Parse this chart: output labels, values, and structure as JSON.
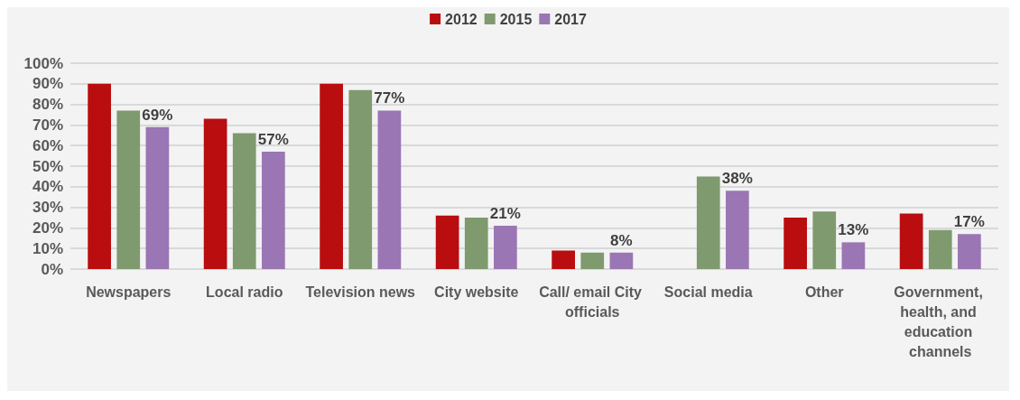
{
  "chart_data": {
    "type": "bar",
    "categories": [
      "Newspapers",
      "Local radio",
      "Television news",
      "City website",
      "Call/ email City officials",
      "Social media",
      "Other",
      "Government, health, and education channels"
    ],
    "series": [
      {
        "name": "2012",
        "color": "#b90d0f",
        "values": [
          90,
          73,
          90,
          26,
          9,
          null,
          25,
          27
        ]
      },
      {
        "name": "2015",
        "color": "#7f9a6e",
        "values": [
          77,
          66,
          87,
          25,
          8,
          45,
          28,
          19
        ]
      },
      {
        "name": "2017",
        "color": "#9a76b4",
        "values": [
          69,
          57,
          77,
          21,
          8,
          38,
          13,
          17
        ],
        "value_labels": [
          "69%",
          "57%",
          "77%",
          "21%",
          "8%",
          "38%",
          "13%",
          "17%"
        ]
      }
    ],
    "ylim": [
      0,
      100
    ],
    "yticks": [
      {
        "value": 0,
        "label": "0%"
      },
      {
        "value": 10,
        "label": "10%"
      },
      {
        "value": 20,
        "label": "20%"
      },
      {
        "value": 30,
        "label": "30%"
      },
      {
        "value": 40,
        "label": "40%"
      },
      {
        "value": 50,
        "label": "50%"
      },
      {
        "value": 60,
        "label": "60%"
      },
      {
        "value": 70,
        "label": "70%"
      },
      {
        "value": 80,
        "label": "80%"
      },
      {
        "value": 90,
        "label": "90%"
      },
      {
        "value": 100,
        "label": "100%"
      }
    ],
    "grid": "y",
    "legend": "top"
  }
}
